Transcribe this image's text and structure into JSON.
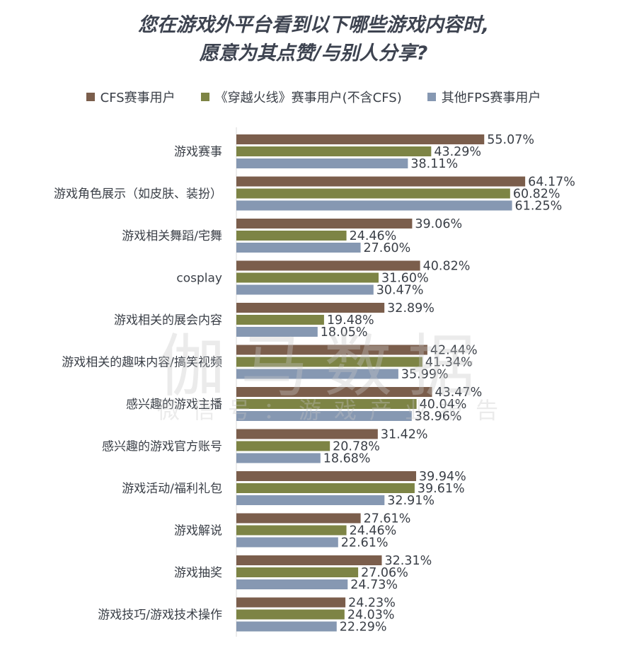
{
  "chart_data": {
    "type": "bar",
    "orientation": "horizontal",
    "title_lines": [
      "您在游戏外平台看到以下哪些游戏内容时,",
      "愿意为其点赞/与别人分享?"
    ],
    "categories": [
      "游戏赛事",
      "游戏角色展示（如皮肤、装扮）",
      "游戏相关舞蹈/宅舞",
      "cosplay",
      "游戏相关的展会内容",
      "游戏相关的趣味内容/搞笑视频",
      "感兴趣的游戏主播",
      "感兴趣的游戏官方账号",
      "游戏活动/福利礼包",
      "游戏解说",
      "游戏抽奖",
      "游戏技巧/游戏技术操作"
    ],
    "series": [
      {
        "name": "CFS赛事用户",
        "color": "#7b5e4c",
        "values": [
          55.07,
          64.17,
          39.06,
          40.82,
          32.89,
          42.44,
          43.47,
          31.42,
          39.94,
          27.61,
          32.31,
          24.23
        ]
      },
      {
        "name": "《穿越火线》赛事用户(不含CFS)",
        "color": "#7d8445",
        "values": [
          43.29,
          60.82,
          24.46,
          31.6,
          19.48,
          41.34,
          40.04,
          20.78,
          39.61,
          24.46,
          27.06,
          24.03
        ]
      },
      {
        "name": "其他FPS赛事用户",
        "color": "#8698b2",
        "values": [
          38.11,
          61.25,
          27.6,
          30.47,
          18.05,
          35.99,
          38.96,
          18.68,
          32.91,
          22.61,
          24.73,
          22.29
        ]
      }
    ],
    "value_format": "%",
    "xlim": [
      0,
      70
    ],
    "grid": false,
    "legend_position": "top"
  },
  "watermark": {
    "main": "伽马数据",
    "sub": "微信号：游戏产业报告"
  }
}
